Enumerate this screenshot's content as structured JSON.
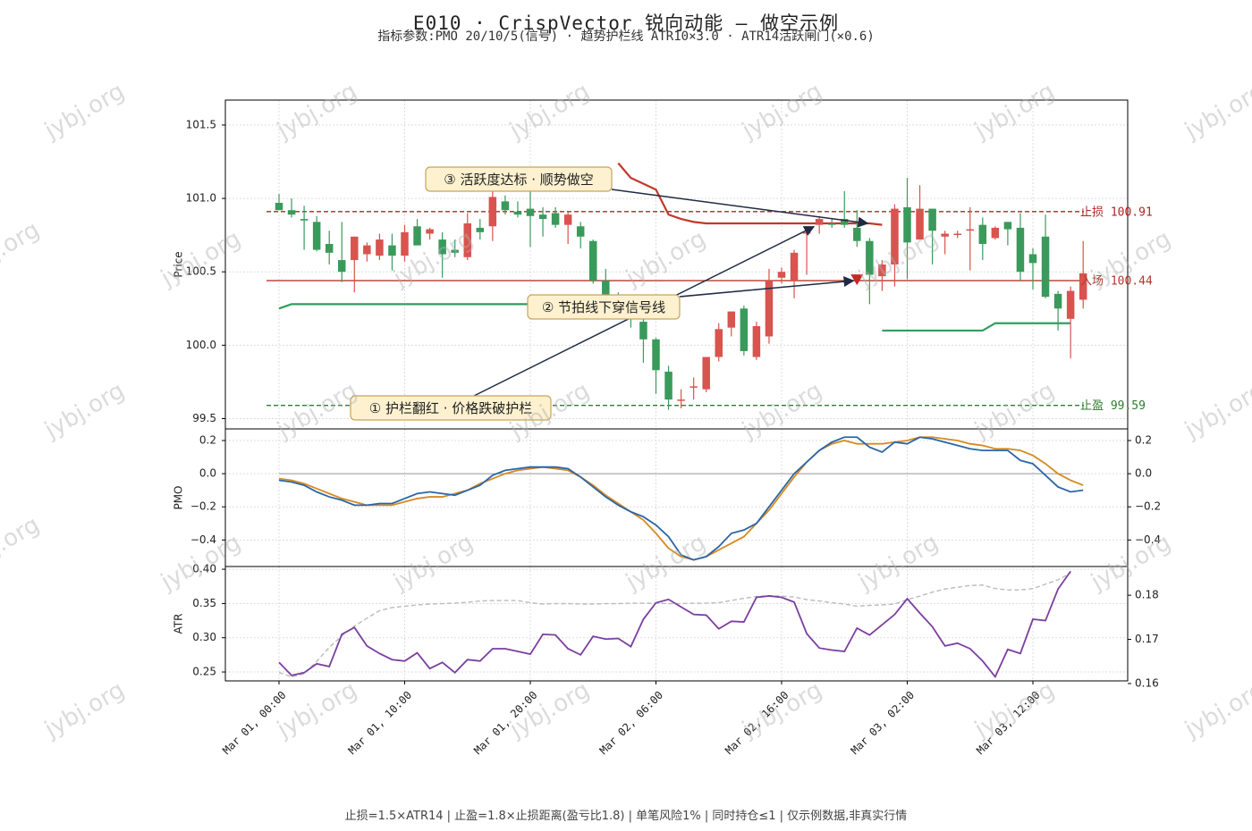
{
  "title": "E010 · CrispVector 锐向动能 — 做空示例",
  "subtitle": "指标参数:PMO 20/10/5(信号) · 趋势护栏线 ATR10×3.0 · ATR14活跃闸门(×0.6)",
  "footer": "止损=1.5×ATR14 | 止盈=1.8×止损距离(盈亏比1.8) | 单笔风险1% | 同时持仓≤1 | 仅示例数据,非真实行情",
  "watermark": "jybj.org",
  "colors": {
    "up": "#d9534f",
    "down": "#3a9a5b",
    "trail": "#c0392b",
    "pmo": "#2a65a8",
    "signal": "#d68a1e",
    "atr": "#7b3fa0",
    "atr_gate": "#bbbbbb",
    "stop": "#b22222",
    "entry": "#b23a2a",
    "take": "#2e7d32",
    "guard_green": "#2e9e5e"
  },
  "chart_data": {
    "type": "candlestick",
    "x_ticks": [
      "Mar 01, 00:00",
      "Mar 01, 10:00",
      "Mar 01, 20:00",
      "Mar 02, 06:00",
      "Mar 02, 16:00",
      "Mar 03, 02:00",
      "Mar 03, 12:00"
    ],
    "x_tick_index": [
      0,
      10,
      20,
      30,
      40,
      50,
      60
    ],
    "price": {
      "ylabel": "Price",
      "ylim": [
        99.43,
        101.67
      ],
      "yticks": [
        99.5,
        100.0,
        100.5,
        101.0,
        101.5
      ],
      "candles": [
        [
          100.97,
          101.03,
          100.92,
          100.92
        ],
        [
          100.92,
          101.0,
          100.87,
          100.89
        ],
        [
          100.86,
          100.95,
          100.65,
          100.85
        ],
        [
          100.84,
          100.88,
          100.64,
          100.65
        ],
        [
          100.69,
          100.78,
          100.55,
          100.63
        ],
        [
          100.58,
          100.84,
          100.43,
          100.5
        ],
        [
          100.58,
          100.74,
          100.36,
          100.74
        ],
        [
          100.62,
          100.7,
          100.57,
          100.68
        ],
        [
          100.61,
          100.76,
          100.58,
          100.72
        ],
        [
          100.68,
          100.76,
          100.51,
          100.61
        ],
        [
          100.61,
          100.82,
          100.57,
          100.77
        ],
        [
          100.81,
          100.86,
          100.69,
          100.68
        ],
        [
          100.76,
          100.8,
          100.72,
          100.79
        ],
        [
          100.72,
          100.77,
          100.46,
          100.62
        ],
        [
          100.65,
          100.72,
          100.6,
          100.63
        ],
        [
          100.6,
          100.9,
          100.58,
          100.83
        ],
        [
          100.8,
          100.86,
          100.72,
          100.77
        ],
        [
          100.81,
          101.1,
          100.71,
          101.01
        ],
        [
          100.98,
          101.02,
          100.89,
          100.92
        ],
        [
          100.91,
          100.98,
          100.87,
          100.89
        ],
        [
          100.93,
          101.05,
          100.67,
          100.88
        ],
        [
          100.89,
          100.94,
          100.74,
          100.86
        ],
        [
          100.9,
          100.94,
          100.8,
          100.82
        ],
        [
          100.82,
          100.91,
          100.69,
          100.89
        ],
        [
          100.81,
          100.84,
          100.66,
          100.74
        ],
        [
          100.71,
          100.72,
          100.42,
          100.44
        ],
        [
          100.44,
          100.52,
          100.31,
          100.34
        ],
        [
          100.34,
          100.36,
          100.25,
          100.28
        ],
        [
          100.28,
          100.31,
          100.12,
          100.25
        ],
        [
          100.16,
          100.24,
          99.88,
          100.04
        ],
        [
          100.04,
          100.05,
          99.67,
          99.83
        ],
        [
          99.82,
          99.86,
          99.56,
          99.63
        ],
        [
          99.63,
          99.7,
          99.57,
          99.63
        ],
        [
          99.72,
          99.78,
          99.63,
          99.72
        ],
        [
          99.7,
          99.92,
          99.68,
          99.92
        ],
        [
          99.92,
          100.15,
          99.89,
          100.11
        ],
        [
          100.12,
          100.23,
          100.06,
          100.23
        ],
        [
          100.25,
          100.27,
          99.93,
          99.96
        ],
        [
          99.92,
          100.16,
          99.9,
          100.13
        ],
        [
          100.06,
          100.52,
          100.01,
          100.44
        ],
        [
          100.46,
          100.53,
          100.42,
          100.5
        ],
        [
          100.44,
          100.65,
          100.32,
          100.63
        ],
        [
          100.76,
          100.81,
          100.48,
          100.77
        ],
        [
          100.82,
          100.88,
          100.76,
          100.86
        ],
        [
          100.83,
          100.86,
          100.8,
          100.82
        ],
        [
          100.86,
          101.05,
          100.8,
          100.82
        ],
        [
          100.8,
          100.92,
          100.67,
          100.71
        ],
        [
          100.71,
          100.73,
          100.28,
          100.48
        ],
        [
          100.47,
          100.58,
          100.37,
          100.55
        ],
        [
          100.55,
          100.96,
          100.4,
          100.93
        ],
        [
          100.94,
          101.14,
          100.45,
          100.7
        ],
        [
          100.72,
          101.09,
          100.72,
          100.93
        ],
        [
          100.93,
          100.93,
          100.55,
          100.78
        ],
        [
          100.74,
          100.78,
          100.62,
          100.76
        ],
        [
          100.76,
          100.78,
          100.73,
          100.76
        ],
        [
          100.79,
          100.94,
          100.51,
          100.79
        ],
        [
          100.82,
          100.87,
          100.58,
          100.69
        ],
        [
          100.73,
          100.81,
          100.72,
          100.8
        ],
        [
          100.84,
          100.84,
          100.68,
          100.79
        ],
        [
          100.8,
          100.9,
          100.44,
          100.5
        ],
        [
          100.62,
          100.66,
          100.38,
          100.56
        ],
        [
          100.74,
          100.89,
          100.32,
          100.33
        ],
        [
          100.35,
          100.37,
          100.1,
          100.25
        ],
        [
          100.18,
          100.4,
          99.91,
          100.37
        ],
        [
          100.31,
          100.71,
          100.25,
          100.49
        ]
      ],
      "trail_green": [
        [
          0,
          100.25
        ],
        [
          1,
          100.28
        ],
        [
          25,
          100.28
        ]
      ],
      "trail_green_2": [
        [
          48,
          100.1
        ],
        [
          56,
          100.1
        ],
        [
          57,
          100.15
        ],
        [
          63,
          100.15
        ]
      ],
      "trail_red": [
        [
          27,
          101.24
        ],
        [
          28,
          101.14
        ],
        [
          29,
          101.1
        ],
        [
          30,
          101.06
        ],
        [
          31,
          100.89
        ],
        [
          32,
          100.86
        ],
        [
          33,
          100.84
        ],
        [
          34,
          100.83
        ],
        [
          47,
          100.83
        ],
        [
          48,
          100.82
        ]
      ],
      "stop": {
        "value": 100.91,
        "label": "止损 100.91"
      },
      "entry": {
        "value": 100.44,
        "label": "入场 100.44"
      },
      "take": {
        "value": 99.59,
        "label": "止盈 99.59"
      },
      "short_marker": {
        "x": 46,
        "y": 100.44
      }
    },
    "pmo": {
      "ylabel": "PMO",
      "ylim": [
        -0.56,
        0.27
      ],
      "yticks": [
        0.2,
        0.0,
        -0.2,
        -0.4
      ],
      "pmo_line": [
        -0.04,
        -0.05,
        -0.07,
        -0.11,
        -0.14,
        -0.16,
        -0.19,
        -0.19,
        -0.18,
        -0.18,
        -0.15,
        -0.12,
        -0.11,
        -0.12,
        -0.13,
        -0.1,
        -0.07,
        -0.01,
        0.02,
        0.03,
        0.04,
        0.04,
        0.04,
        0.03,
        -0.02,
        -0.08,
        -0.14,
        -0.19,
        -0.23,
        -0.26,
        -0.31,
        -0.38,
        -0.49,
        -0.52,
        -0.5,
        -0.44,
        -0.36,
        -0.34,
        -0.3,
        -0.2,
        -0.1,
        0.0,
        0.07,
        0.14,
        0.19,
        0.22,
        0.22,
        0.16,
        0.13,
        0.19,
        0.18,
        0.22,
        0.21,
        0.19,
        0.17,
        0.15,
        0.14,
        0.14,
        0.14,
        0.08,
        0.06,
        -0.01,
        -0.08,
        -0.11,
        -0.1
      ],
      "signal_line": [
        -0.03,
        -0.04,
        -0.06,
        -0.09,
        -0.12,
        -0.15,
        -0.17,
        -0.19,
        -0.19,
        -0.19,
        -0.17,
        -0.15,
        -0.14,
        -0.14,
        -0.12,
        -0.1,
        -0.06,
        -0.03,
        0.0,
        0.02,
        0.03,
        0.04,
        0.03,
        0.02,
        -0.02,
        -0.07,
        -0.13,
        -0.18,
        -0.23,
        -0.28,
        -0.36,
        -0.45,
        -0.5,
        -0.52,
        -0.5,
        -0.46,
        -0.42,
        -0.38,
        -0.3,
        -0.22,
        -0.12,
        -0.02,
        0.07,
        0.14,
        0.18,
        0.2,
        0.18,
        0.18,
        0.18,
        0.19,
        0.2,
        0.22,
        0.22,
        0.21,
        0.2,
        0.18,
        0.17,
        0.15,
        0.15,
        0.14,
        0.11,
        0.06,
        0.0,
        -0.04,
        -0.07
      ]
    },
    "atr": {
      "ylabel": "ATR",
      "ylim": [
        0.237,
        0.404
      ],
      "yticks": [
        0.4,
        0.35,
        0.3,
        0.25
      ],
      "y2ticks": [
        0.18,
        0.17,
        0.16
      ],
      "y2lim": [
        0.1606,
        0.1865
      ],
      "atr_line": [
        0.264,
        0.245,
        0.249,
        0.262,
        0.258,
        0.305,
        0.315,
        0.288,
        0.277,
        0.268,
        0.266,
        0.278,
        0.255,
        0.264,
        0.249,
        0.268,
        0.266,
        0.284,
        0.284,
        0.28,
        0.276,
        0.305,
        0.304,
        0.284,
        0.275,
        0.302,
        0.298,
        0.299,
        0.287,
        0.327,
        0.351,
        0.356,
        0.345,
        0.334,
        0.333,
        0.313,
        0.324,
        0.323,
        0.359,
        0.361,
        0.359,
        0.352,
        0.306,
        0.285,
        0.282,
        0.28,
        0.314,
        0.304,
        0.319,
        0.334,
        0.357,
        0.336,
        0.316,
        0.288,
        0.292,
        0.284,
        0.266,
        0.243,
        0.283,
        0.277,
        0.327,
        0.325,
        0.371,
        0.397
      ],
      "atr_gate": [
        0.1625,
        0.1615,
        0.1622,
        0.165,
        0.1682,
        0.1708,
        0.173,
        0.1748,
        0.1765,
        0.1772,
        0.1775,
        0.1778,
        0.178,
        0.1781,
        0.1782,
        0.1784,
        0.1787,
        0.1788,
        0.1788,
        0.1788,
        0.1783,
        0.178,
        0.1781,
        0.1781,
        0.178,
        0.178,
        0.1781,
        0.1781,
        0.1782,
        0.1782,
        0.1782,
        0.1781,
        0.1781,
        0.1782,
        0.1782,
        0.1783,
        0.1788,
        0.1793,
        0.1797,
        0.1799,
        0.1798,
        0.1796,
        0.179,
        0.1787,
        0.1783,
        0.178,
        0.1775,
        0.1777,
        0.1778,
        0.178,
        0.179,
        0.1798,
        0.1807,
        0.1814,
        0.1818,
        0.1822,
        0.1823,
        0.1815,
        0.1812,
        0.1812,
        0.1815,
        0.1825,
        0.1835,
        0.185
      ]
    },
    "annotations": [
      {
        "text": "① 护栏翻红 · 价格跌破护栏"
      },
      {
        "text": "② 节拍线下穿信号线"
      },
      {
        "text": "③ 活跃度达标 · 顺势做空"
      }
    ]
  }
}
